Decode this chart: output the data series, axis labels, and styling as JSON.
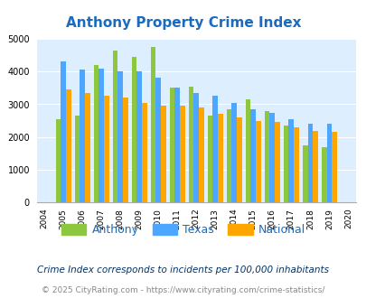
{
  "title": "Anthony Property Crime Index",
  "years": [
    2004,
    2005,
    2006,
    2007,
    2008,
    2009,
    2010,
    2011,
    2012,
    2013,
    2014,
    2015,
    2016,
    2017,
    2018,
    2019,
    2020
  ],
  "anthony": [
    null,
    2550,
    2650,
    4200,
    4650,
    4450,
    4750,
    3500,
    3550,
    2650,
    2850,
    3150,
    2800,
    2350,
    1750,
    1700,
    null
  ],
  "texas": [
    null,
    4300,
    4050,
    4100,
    4000,
    4000,
    3800,
    3500,
    3350,
    3250,
    3050,
    2850,
    2750,
    2550,
    2400,
    2400,
    null
  ],
  "national": [
    null,
    3450,
    3350,
    3250,
    3200,
    3050,
    2950,
    2950,
    2900,
    2700,
    2600,
    2500,
    2450,
    2300,
    2200,
    2150,
    null
  ],
  "anthony_color": "#8dc63f",
  "texas_color": "#4da6ff",
  "national_color": "#ffa500",
  "bg_color": "#ddeeff",
  "ylim": [
    0,
    5000
  ],
  "yticks": [
    0,
    1000,
    2000,
    3000,
    4000,
    5000
  ],
  "legend_labels": [
    "Anthony",
    "Texas",
    "National"
  ],
  "footnote1": "Crime Index corresponds to incidents per 100,000 inhabitants",
  "footnote2": "© 2025 CityRating.com - https://www.cityrating.com/crime-statistics/",
  "title_color": "#1a6bbf",
  "footnote1_color": "#003366",
  "footnote2_color": "#888888"
}
